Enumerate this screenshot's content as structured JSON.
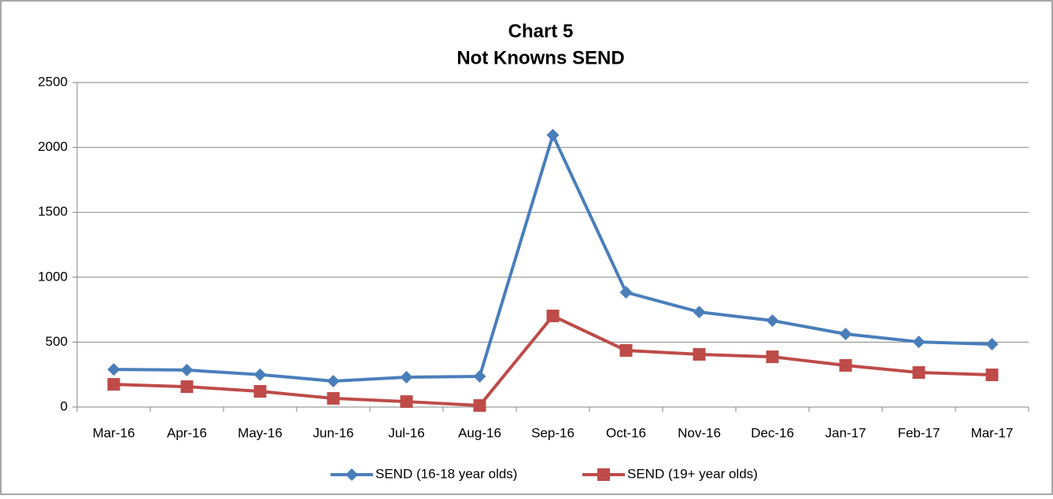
{
  "chart_data": {
    "type": "line",
    "title": "Chart 5",
    "subtitle": "Not Knowns SEND",
    "categories": [
      "Mar-16",
      "Apr-16",
      "May-16",
      "Jun-16",
      "Jul-16",
      "Aug-16",
      "Sep-16",
      "Oct-16",
      "Nov-16",
      "Dec-16",
      "Jan-17",
      "Feb-17",
      "Mar-17"
    ],
    "series": [
      {
        "name": "SEND (16-18 year olds)",
        "color": "#4a7ebb",
        "marker": "diamond",
        "values": [
          290,
          285,
          250,
          200,
          230,
          236,
          2095,
          884,
          732,
          666,
          563,
          502,
          484
        ]
      },
      {
        "name": "SEND (19+ year olds)",
        "color": "#be4b48",
        "marker": "square",
        "values": [
          175,
          157,
          121,
          67,
          42,
          12,
          702,
          436,
          406,
          387,
          321,
          266,
          248
        ]
      }
    ],
    "ylim": [
      0,
      2500
    ],
    "yticks": [
      0,
      500,
      1000,
      1500,
      2000,
      2500
    ],
    "grid": true,
    "legend": "bottom"
  }
}
